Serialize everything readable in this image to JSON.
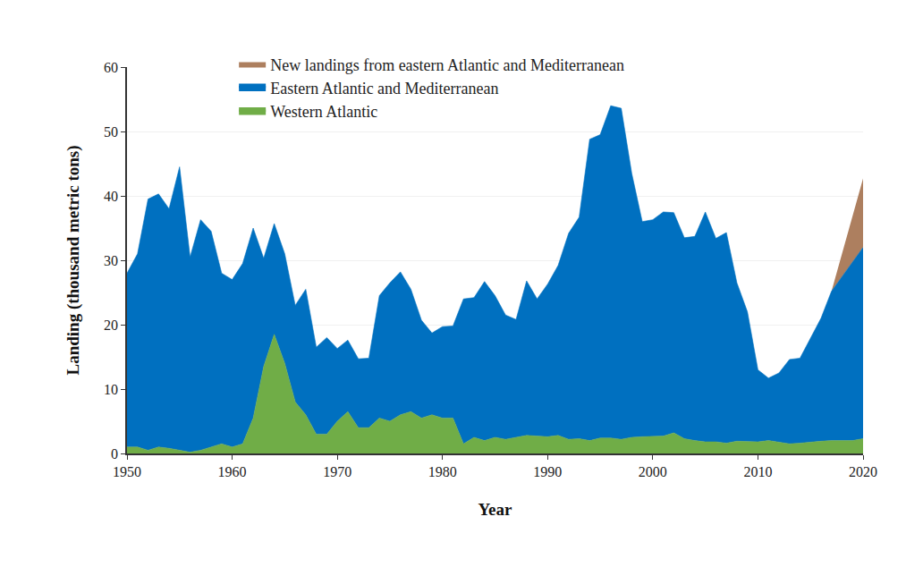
{
  "chart_data": {
    "type": "area",
    "stacked": true,
    "x_label": "Year",
    "y_label": "Landing (thousand metric tons)",
    "x": [
      1950,
      1951,
      1952,
      1953,
      1954,
      1955,
      1956,
      1957,
      1958,
      1959,
      1960,
      1961,
      1962,
      1963,
      1964,
      1965,
      1966,
      1967,
      1968,
      1969,
      1970,
      1971,
      1972,
      1973,
      1974,
      1975,
      1976,
      1977,
      1978,
      1979,
      1980,
      1981,
      1982,
      1983,
      1984,
      1985,
      1986,
      1987,
      1988,
      1989,
      1990,
      1991,
      1992,
      1993,
      1994,
      1995,
      1996,
      1997,
      1998,
      1999,
      2000,
      2001,
      2002,
      2003,
      2004,
      2005,
      2006,
      2007,
      2008,
      2009,
      2010,
      2011,
      2012,
      2013,
      2014,
      2015,
      2016,
      2017,
      2018,
      2019,
      2020
    ],
    "series": [
      {
        "name": "Western Atlantic",
        "color": "#70ad47",
        "values": [
          1,
          1,
          0.5,
          1,
          0.8,
          0.5,
          0.2,
          0.5,
          1,
          1.5,
          1,
          1.5,
          5.5,
          13.5,
          18.5,
          14,
          8,
          6,
          3,
          3,
          5,
          6.5,
          4,
          4,
          5.5,
          5,
          6,
          6.5,
          5.5,
          6,
          5.5,
          5.5,
          1.5,
          2.5,
          2,
          2.5,
          2.2,
          2.5,
          2.8,
          2.7,
          2.6,
          2.8,
          2.2,
          2.3,
          2,
          2.4,
          2.4,
          2.2,
          2.5,
          2.6,
          2.6,
          2.7,
          3.2,
          2.3,
          2,
          1.8,
          1.8,
          1.6,
          1.9,
          1.8,
          1.8,
          2,
          1.7,
          1.5,
          1.6,
          1.8,
          1.9,
          2,
          2,
          2,
          2.3
        ]
      },
      {
        "name": "Eastern Atlantic and Mediterranean",
        "color": "#0070c0",
        "values": [
          27,
          30,
          39,
          39.3,
          37.2,
          44,
          30.3,
          35.8,
          33.5,
          26.5,
          26,
          28,
          29.5,
          16.8,
          17.2,
          17,
          15,
          19.5,
          13.5,
          15,
          11.3,
          11.1,
          10.7,
          10.8,
          19,
          21.5,
          22.2,
          19,
          15.2,
          12.7,
          14.2,
          14.3,
          22.5,
          21.7,
          24.7,
          22,
          19.3,
          18.3,
          24,
          21.3,
          23.7,
          26.4,
          32,
          34.4,
          46.8,
          47.1,
          51.6,
          51.4,
          41,
          33.4,
          33.7,
          34.8,
          34.2,
          31.2,
          31.7,
          35.7,
          31.6,
          32.7,
          24.6,
          20.2,
          11.2,
          9.7,
          10.8,
          13.1,
          13.2,
          16,
          19.1,
          23.2,
          25.5,
          27.7,
          29.7
        ]
      },
      {
        "name": "New landings from eastern Atlantic and Mediterranean",
        "color": "#ad7f5f",
        "values": [
          null,
          null,
          null,
          null,
          null,
          null,
          null,
          null,
          null,
          null,
          null,
          null,
          null,
          null,
          null,
          null,
          null,
          null,
          null,
          null,
          null,
          null,
          null,
          null,
          null,
          null,
          null,
          null,
          null,
          null,
          null,
          null,
          null,
          null,
          null,
          null,
          null,
          null,
          null,
          null,
          null,
          null,
          null,
          null,
          null,
          null,
          null,
          null,
          null,
          null,
          null,
          null,
          null,
          null,
          null,
          null,
          null,
          null,
          null,
          null,
          null,
          null,
          null,
          null,
          null,
          null,
          null,
          0,
          3.5,
          7,
          10.7
        ]
      }
    ],
    "xlim": [
      1950,
      2020
    ],
    "xticks": [
      1950,
      1960,
      1970,
      1980,
      1990,
      2000,
      2010,
      2020
    ],
    "ylim": [
      0,
      60
    ],
    "yticks": [
      0,
      10,
      20,
      30,
      40,
      50,
      60
    ],
    "grid": true,
    "legend": "top"
  }
}
